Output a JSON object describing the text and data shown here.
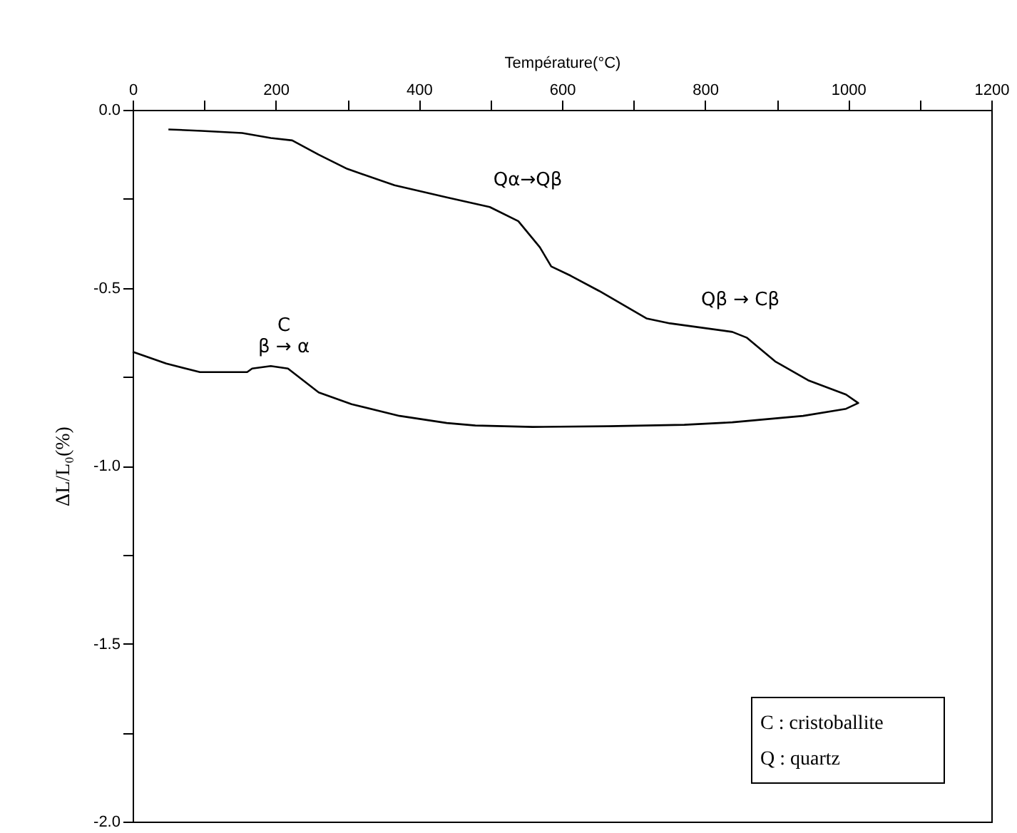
{
  "chart_data": {
    "type": "line",
    "xlabel": "Température(°C)",
    "ylabel": "ΔL/L₀(%)",
    "xlim": [
      0,
      1200
    ],
    "ylim": [
      -2.0,
      0.0
    ],
    "xticks": [
      0,
      {
        "value": 100,
        "label": null
      },
      200,
      {
        "value": 300,
        "label": null
      },
      400,
      {
        "value": 500,
        "label": null
      },
      600,
      {
        "value": 700,
        "label": null
      },
      800,
      {
        "value": 900,
        "label": null
      },
      1000,
      {
        "value": 1100,
        "label": null
      },
      1200
    ],
    "yticks": [
      {
        "value": -2.0,
        "label": "-2.0"
      },
      {
        "value": -1.75,
        "label": null
      },
      -1.5,
      {
        "value": -1.25,
        "label": null
      },
      {
        "value": -1.0,
        "label": "-1.0"
      },
      {
        "value": -0.75,
        "label": null
      },
      -0.5,
      {
        "value": -0.25,
        "label": null
      },
      {
        "value": 0.0,
        "label": "0.0"
      }
    ],
    "x": [
      50,
      96,
      153,
      193,
      223,
      260,
      300,
      366,
      439,
      499,
      539,
      569,
      585,
      612,
      652,
      718,
      751,
      838,
      858,
      898,
      944,
      997,
      1014,
      997,
      937,
      838,
      771,
      665,
      559,
      479,
      439,
      373,
      306,
      260,
      217,
      193,
      167,
      160,
      94,
      47,
      0
    ],
    "series": [
      {
        "color": "#000000",
        "values": [
          -0.055,
          -0.059,
          -0.065,
          -0.079,
          -0.086,
          -0.126,
          -0.166,
          -0.212,
          -0.246,
          -0.273,
          -0.313,
          -0.386,
          -0.44,
          -0.466,
          -0.509,
          -0.586,
          -0.6,
          -0.624,
          -0.64,
          -0.707,
          -0.76,
          -0.8,
          -0.824,
          -0.84,
          -0.86,
          -0.878,
          -0.885,
          -0.889,
          -0.891,
          -0.887,
          -0.88,
          -0.86,
          -0.827,
          -0.794,
          -0.727,
          -0.72,
          -0.727,
          -0.737,
          -0.737,
          -0.713,
          -0.68
        ]
      }
    ],
    "annotations": [
      "Qα→Qβ",
      "Qβ → Cβ",
      "C",
      "β → α",
      "C : cristoballite",
      "Q : quartz"
    ]
  }
}
